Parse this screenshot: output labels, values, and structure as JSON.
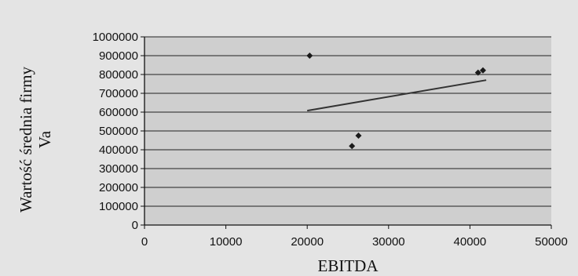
{
  "chart_data": {
    "type": "scatter",
    "title": "",
    "xlabel": "EBITDA",
    "ylabel": [
      "Wartość średnia firmy",
      "Va"
    ],
    "xlim": [
      0,
      50000
    ],
    "ylim": [
      0,
      1000000
    ],
    "x_ticks": [
      "0",
      "10000",
      "20000",
      "30000",
      "40000",
      "50000"
    ],
    "y_ticks": [
      "0",
      "100000",
      "200000",
      "300000",
      "400000",
      "500000",
      "600000",
      "700000",
      "800000",
      "900000",
      "1000000"
    ],
    "grid": "horizontal",
    "points": [
      {
        "x": 20300,
        "y": 900000
      },
      {
        "x": 25500,
        "y": 420000
      },
      {
        "x": 26300,
        "y": 475000
      },
      {
        "x": 41000,
        "y": 810000
      },
      {
        "x": 41600,
        "y": 822000
      }
    ],
    "trendline": {
      "type": "linear",
      "x": [
        20000,
        42000
      ],
      "y": [
        608000,
        770000
      ]
    },
    "colors": {
      "plot_bg": "#cfcfcf",
      "marker": "#1a1a1a",
      "line": "#333333",
      "grid": "#222222"
    }
  }
}
